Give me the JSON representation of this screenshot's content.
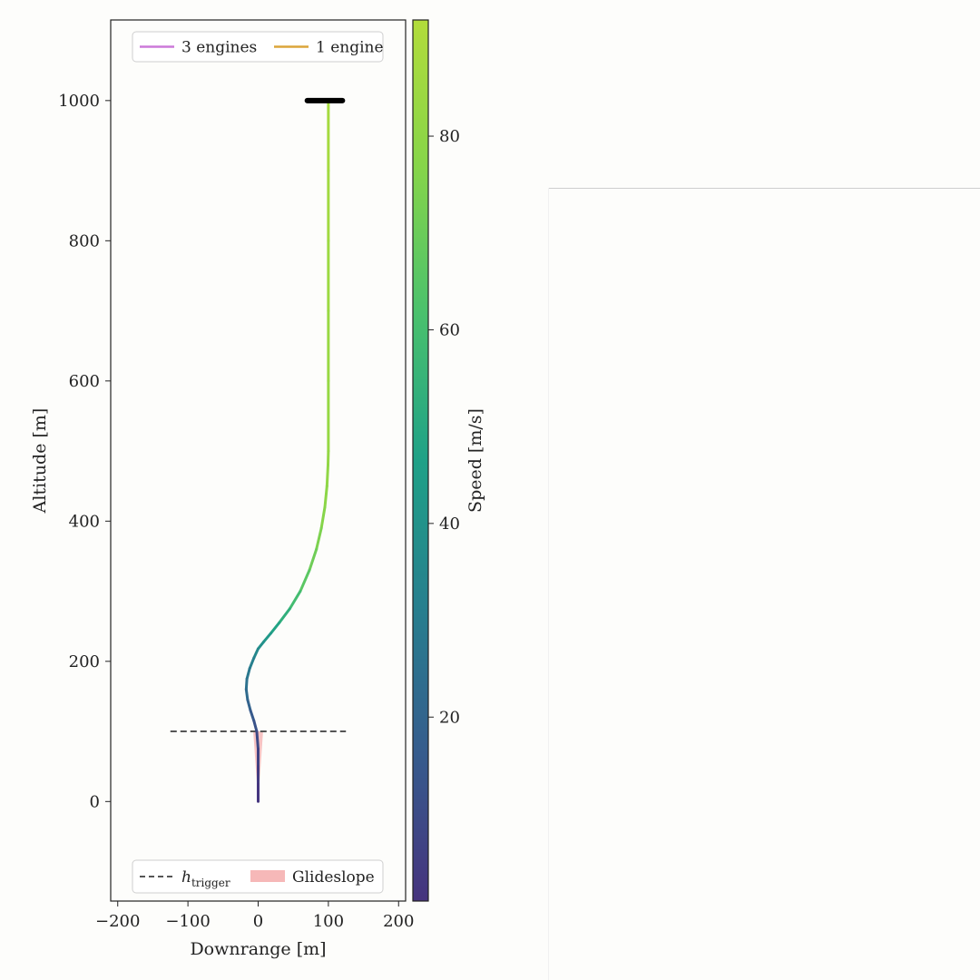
{
  "chart_data": {
    "type": "line",
    "xlabel": "Downrange [m]",
    "ylabel": "Altitude [m]",
    "xlim": [
      -210,
      210
    ],
    "ylim": [
      -142,
      1115
    ],
    "x_ticks": [
      -200,
      -100,
      0,
      100,
      200
    ],
    "x_tick_labels": [
      "−200",
      "−100",
      "0",
      "100",
      "200"
    ],
    "y_ticks": [
      0,
      200,
      400,
      600,
      800,
      1000
    ],
    "y_tick_labels": [
      "0",
      "200",
      "400",
      "600",
      "800",
      "1000"
    ],
    "grid": false,
    "legends": [
      {
        "placement": "upper center",
        "entries": [
          {
            "label": "3 engines",
            "color": "#cc79d8",
            "style": "line"
          },
          {
            "label": "1 engine",
            "color": "#dba53a",
            "style": "line"
          }
        ]
      },
      {
        "placement": "lower center",
        "entries": [
          {
            "label_base": "h",
            "label_sub": "trigger",
            "color": "#555555",
            "style": "dashed"
          },
          {
            "label": "Glideslope",
            "color": "#f6b8b8",
            "style": "patch"
          }
        ]
      }
    ],
    "colorbar": {
      "label": "Speed [m/s]",
      "range": [
        1,
        92
      ],
      "ticks": [
        20,
        40,
        60,
        80
      ],
      "tick_labels": [
        "20",
        "40",
        "60",
        "80"
      ],
      "colormap": "viridis",
      "stops": [
        "#46337e",
        "#365c8d",
        "#277f8e",
        "#1fa187",
        "#4ac16d",
        "#86d549",
        "#b2dc3b"
      ]
    },
    "series": [
      {
        "kind": "trajectory",
        "x": [
          100,
          100,
          100,
          100,
          100,
          100,
          99.5,
          98,
          95,
          90,
          83,
          73,
          60,
          45,
          30,
          18,
          8,
          0,
          -6,
          -12,
          -16,
          -17,
          -15,
          -11,
          -6,
          -2,
          0,
          0,
          0,
          0
        ],
        "y": [
          1000,
          900,
          800,
          700,
          600,
          500,
          480,
          450,
          420,
          390,
          360,
          330,
          300,
          275,
          255,
          240,
          228,
          218,
          205,
          190,
          175,
          160,
          145,
          130,
          115,
          100,
          75,
          50,
          25,
          0
        ],
        "speed": [
          88,
          87,
          85,
          84,
          83,
          82,
          81,
          80,
          78,
          76,
          73,
          69,
          63,
          56,
          50,
          45,
          41,
          37,
          34,
          30,
          27,
          24,
          21,
          17,
          14,
          11,
          8,
          5,
          3,
          1
        ]
      },
      {
        "kind": "h_trigger",
        "y": 100,
        "x_range": [
          -125,
          125
        ],
        "color": "#555555"
      },
      {
        "kind": "glideslope",
        "y": [
          0,
          100
        ],
        "x_half_width_at_top": 7,
        "color": "#f6b8b8"
      },
      {
        "kind": "initial_marker",
        "x_range": [
          70,
          120
        ],
        "y": 1000,
        "color": "#000000"
      }
    ]
  }
}
